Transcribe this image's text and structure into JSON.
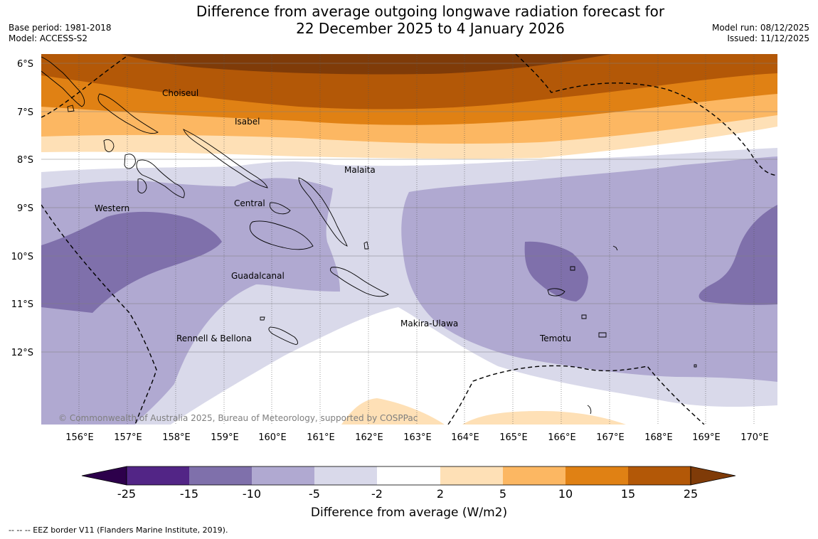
{
  "header": {
    "title_line1": "Difference from average outgoing longwave radiation forecast for",
    "title_line2": "22 December 2025 to 4 January 2026",
    "base_period": "Base period: 1981-2018",
    "model": "Model: ACCESS-S2",
    "model_run": "Model run: 08/12/2025",
    "issued": "Issued: 11/12/2025"
  },
  "map": {
    "lat_labels": [
      "6°S",
      "7°S",
      "8°S",
      "9°S",
      "10°S",
      "11°S",
      "12°S"
    ],
    "lon_labels": [
      "156°E",
      "157°E",
      "158°E",
      "159°E",
      "160°E",
      "161°E",
      "162°E",
      "163°E",
      "164°E",
      "165°E",
      "166°E",
      "167°E",
      "168°E",
      "169°E",
      "170°E"
    ],
    "province_labels": [
      "Choiseul",
      "Isabel",
      "Malaita",
      "Western",
      "Central",
      "Guadalcanal",
      "Makira-Ulawa",
      "Rennell & Bellona",
      "Temotu"
    ],
    "copyright": "© Commonwealth of Australia 2025, Bureau of Meteorology, supported by COSPPac"
  },
  "colorbar": {
    "ticks": [
      "-25",
      "-15",
      "-10",
      "-5",
      "-2",
      "2",
      "5",
      "10",
      "15",
      "25"
    ],
    "colors": [
      "#522586",
      "#7f70ab",
      "#b0a9d1",
      "#d9d9ea",
      "#ffffff",
      "#fee0b6",
      "#fcb762",
      "#e08114",
      "#b35807"
    ],
    "under_color": "#2d004b",
    "over_color": "#7f3b08",
    "label": "Difference from average (W/m2)"
  },
  "footer": {
    "eez_note": "--  --  -- EEZ border V11 (Flanders Marine Institute, 2019)."
  }
}
